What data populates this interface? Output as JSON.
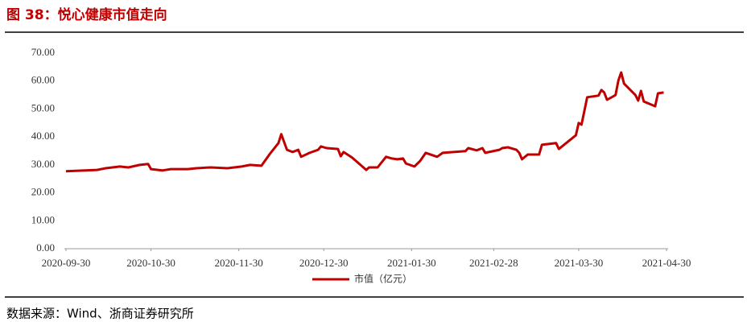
{
  "header": {
    "title": "图 38：悦心健康市值走向"
  },
  "chart_data": {
    "type": "line",
    "x": [
      "2020-09-30",
      "2020-10-11",
      "2020-10-14",
      "2020-10-19",
      "2020-10-22",
      "2020-10-26",
      "2020-10-29",
      "2020-10-30",
      "2020-11-03",
      "2020-11-06",
      "2020-11-12",
      "2020-11-15",
      "2020-11-20",
      "2020-11-26",
      "2020-12-01",
      "2020-12-04",
      "2020-12-08",
      "2020-12-11",
      "2020-12-14",
      "2020-12-15",
      "2020-12-17",
      "2020-12-19",
      "2020-12-21",
      "2020-12-22",
      "2020-12-25",
      "2020-12-28",
      "2020-12-29",
      "2020-12-31",
      "2021-01-04",
      "2021-01-05",
      "2021-01-06",
      "2021-01-09",
      "2021-01-14",
      "2021-01-15",
      "2021-01-18",
      "2021-01-21",
      "2021-01-23",
      "2021-01-25",
      "2021-01-27",
      "2021-01-28",
      "2021-01-31",
      "2021-02-02",
      "2021-02-04",
      "2021-02-08",
      "2021-02-10",
      "2021-02-18",
      "2021-02-19",
      "2021-02-22",
      "2021-02-24",
      "2021-02-25",
      "2021-03-02",
      "2021-03-03",
      "2021-03-05",
      "2021-03-08",
      "2021-03-09",
      "2021-03-10",
      "2021-03-12",
      "2021-03-16",
      "2021-03-17",
      "2021-03-22",
      "2021-03-23",
      "2021-03-29",
      "2021-03-30",
      "2021-03-31",
      "2021-04-02",
      "2021-04-06",
      "2021-04-07",
      "2021-04-08",
      "2021-04-09",
      "2021-04-12",
      "2021-04-13",
      "2021-04-14",
      "2021-04-15",
      "2021-04-19",
      "2021-04-20",
      "2021-04-21",
      "2021-04-22",
      "2021-04-26",
      "2021-04-27",
      "2021-04-29"
    ],
    "series": [
      {
        "name": "市值（亿元）",
        "color": "#c00000",
        "values": [
          27.7,
          28.2,
          28.8,
          29.4,
          29.1,
          30.0,
          30.3,
          28.5,
          28.0,
          28.5,
          28.5,
          28.8,
          29.1,
          28.8,
          29.4,
          30.0,
          29.7,
          34.0,
          37.8,
          41.0,
          35.4,
          34.6,
          35.4,
          32.9,
          34.3,
          35.4,
          36.6,
          36.0,
          35.7,
          33.1,
          34.6,
          32.6,
          28.2,
          29.1,
          29.1,
          32.9,
          32.3,
          32.0,
          32.3,
          30.5,
          29.4,
          31.4,
          34.3,
          32.9,
          34.3,
          34.9,
          36.0,
          35.2,
          36.0,
          34.3,
          35.4,
          36.0,
          36.3,
          35.4,
          34.3,
          32.0,
          33.7,
          33.7,
          37.2,
          37.8,
          35.7,
          40.6,
          45.0,
          44.4,
          54.2,
          54.8,
          56.8,
          55.9,
          53.3,
          55.0,
          60.2,
          63.1,
          59.1,
          55.0,
          53.0,
          56.5,
          52.7,
          51.0,
          55.6,
          55.9
        ]
      }
    ],
    "xlim": [
      "2020-09-30",
      "2021-04-30"
    ],
    "xticks": [
      "2020-09-30",
      "2020-10-30",
      "2020-11-30",
      "2020-12-30",
      "2021-01-30",
      "2021-02-28",
      "2021-03-30",
      "2021-04-30"
    ],
    "ylim": [
      0,
      70
    ],
    "yticks": [
      {
        "value": 0,
        "label": "0.00"
      },
      {
        "value": 10,
        "label": "10.00"
      },
      {
        "value": 20,
        "label": "20.00"
      },
      {
        "value": 30,
        "label": "30.00"
      },
      {
        "value": 40,
        "label": "40.00"
      },
      {
        "value": 50,
        "label": "50.00"
      },
      {
        "value": 60,
        "label": "60.00"
      },
      {
        "value": 70,
        "label": "70.00"
      }
    ],
    "grid": false,
    "legend": "bottom"
  },
  "footer": {
    "source": "数据来源：Wind、浙商证券研究所"
  }
}
